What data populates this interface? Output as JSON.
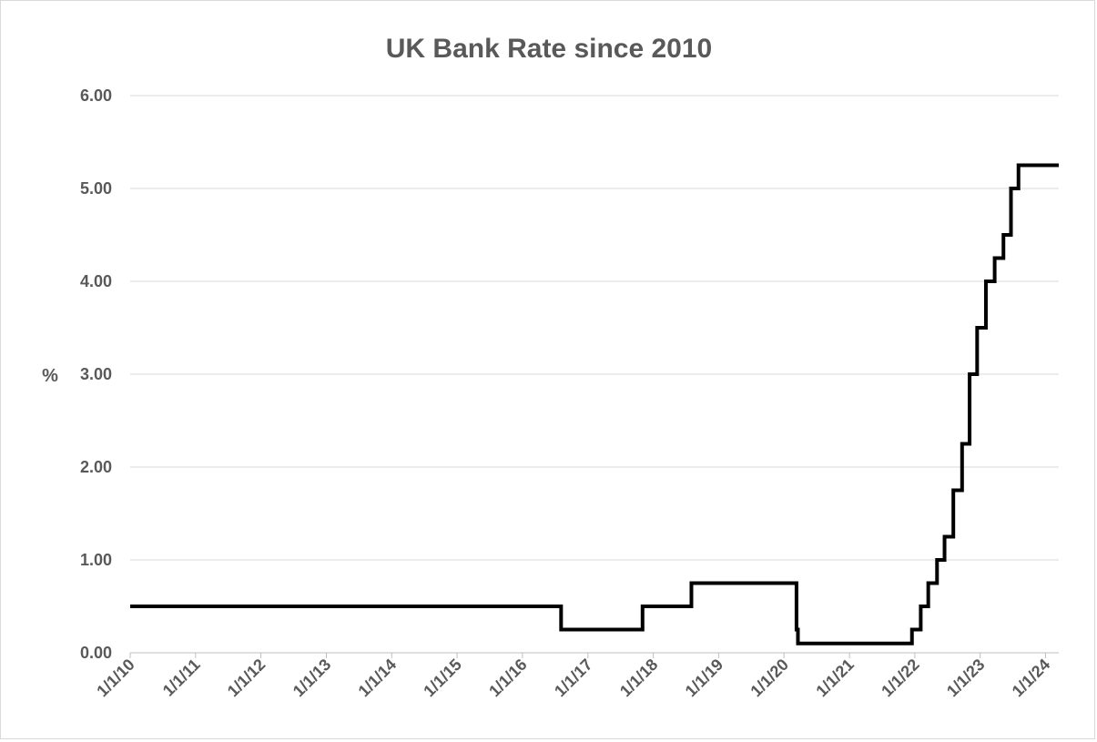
{
  "chart_data": {
    "type": "line",
    "title": "UK Bank Rate since 2010",
    "ylabel": "%",
    "xlabel": "",
    "ylim": [
      0,
      6
    ],
    "xlim": [
      "2010-01-01",
      "2024-03-15"
    ],
    "y_ticks": [
      "0.00",
      "1.00",
      "2.00",
      "3.00",
      "4.00",
      "5.00",
      "6.00"
    ],
    "x_ticks": [
      "1/1/10",
      "1/1/11",
      "1/1/12",
      "1/1/13",
      "1/1/14",
      "1/1/15",
      "1/1/16",
      "1/1/17",
      "1/1/18",
      "1/1/19",
      "1/1/20",
      "1/1/21",
      "1/1/22",
      "1/1/23",
      "1/1/24"
    ],
    "grid": true,
    "step": true,
    "colors": {
      "series": "#000000",
      "grid": "#d9d9d9",
      "text": "#595959"
    },
    "series": [
      {
        "x": [
          "2010-01-01",
          "2016-08-04",
          "2017-11-02",
          "2018-08-02",
          "2020-03-11",
          "2020-03-19",
          "2021-12-16",
          "2022-02-03",
          "2022-03-17",
          "2022-05-05",
          "2022-06-16",
          "2022-08-04",
          "2022-09-22",
          "2022-11-03",
          "2022-12-15",
          "2023-02-02",
          "2023-03-23",
          "2023-05-11",
          "2023-06-22",
          "2023-08-03",
          "2024-03-15"
        ],
        "values": [
          0.5,
          0.25,
          0.5,
          0.75,
          0.25,
          0.1,
          0.25,
          0.5,
          0.75,
          1.0,
          1.25,
          1.75,
          2.25,
          3.0,
          3.5,
          4.0,
          4.25,
          4.5,
          5.0,
          5.25,
          5.25
        ]
      }
    ]
  }
}
